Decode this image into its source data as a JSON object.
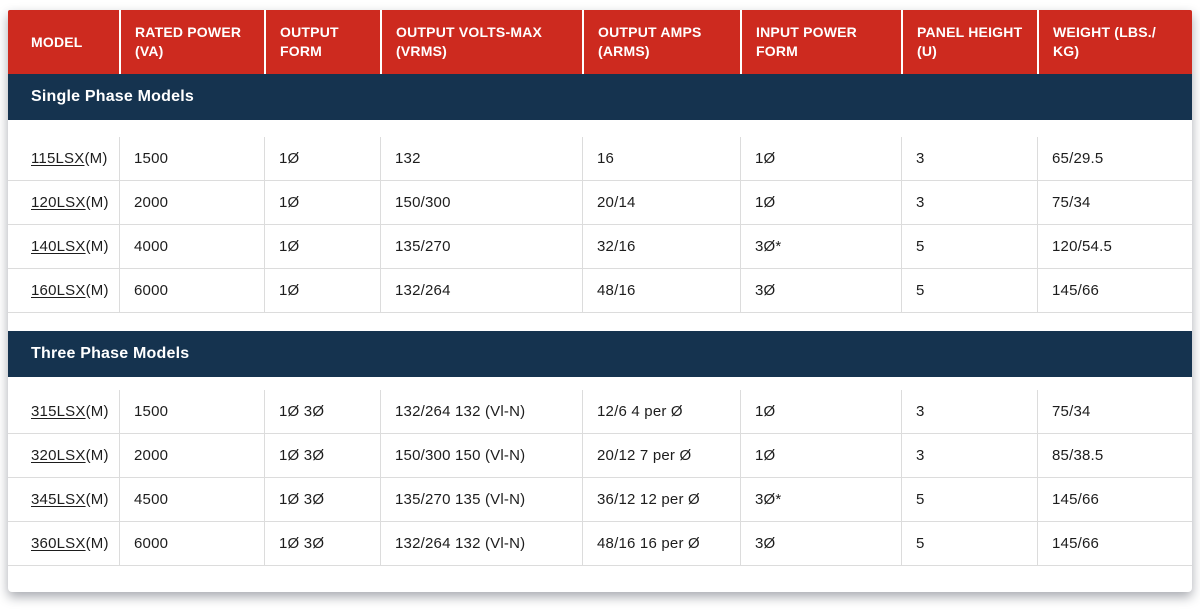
{
  "colors": {
    "header_red": "#cd2a1f",
    "section_navy": "#15334f",
    "body_text": "#1d1d1d",
    "row_border_gray": "#dcdcdc"
  },
  "table": {
    "columns": [
      {
        "lines": [
          "MODEL",
          ""
        ]
      },
      {
        "lines": [
          "RATED POWER",
          "(VA)"
        ]
      },
      {
        "lines": [
          "OUTPUT",
          "FORM"
        ]
      },
      {
        "lines": [
          "OUTPUT VOLTS-MAX",
          "(VRMS)"
        ]
      },
      {
        "lines": [
          "OUTPUT AMPS",
          "(ARMS)"
        ]
      },
      {
        "lines": [
          "INPUT POWER",
          "FORM"
        ]
      },
      {
        "lines": [
          "PANEL HEIGHT",
          "(U)"
        ]
      },
      {
        "lines": [
          "WEIGHT (LBS./",
          "KG)"
        ]
      }
    ],
    "sections": [
      {
        "title": "Single Phase Models",
        "rows": [
          {
            "model_link": "115LSX",
            "model_suffix": "(M)",
            "cells": [
              "1500",
              "1Ø",
              "132",
              "16",
              "1Ø",
              "3",
              "65/29.5"
            ]
          },
          {
            "model_link": "120LSX",
            "model_suffix": "(M)",
            "cells": [
              "2000",
              "1Ø",
              "150/300",
              "20/14",
              "1Ø",
              "3",
              "75/34"
            ]
          },
          {
            "model_link": "140LSX",
            "model_suffix": "(M)",
            "cells": [
              "4000",
              "1Ø",
              "135/270",
              "32/16",
              "3Ø*",
              "5",
              "120/54.5"
            ]
          },
          {
            "model_link": "160LSX",
            "model_suffix": "(M)",
            "cells": [
              "6000",
              "1Ø",
              "132/264",
              "48/16",
              "3Ø",
              "5",
              "145/66"
            ]
          }
        ]
      },
      {
        "title": "Three Phase Models",
        "rows": [
          {
            "model_link": "315LSX",
            "model_suffix": "(M)",
            "cells": [
              "1500",
              "1Ø 3Ø",
              "132/264 132 (Vl-N)",
              "12/6 4 per Ø",
              "1Ø",
              "3",
              "75/34"
            ]
          },
          {
            "model_link": "320LSX",
            "model_suffix": "(M)",
            "cells": [
              "2000",
              "1Ø 3Ø",
              "150/300 150 (Vl-N)",
              "20/12 7 per Ø",
              "1Ø",
              "3",
              "85/38.5"
            ]
          },
          {
            "model_link": "345LSX",
            "model_suffix": "(M)",
            "cells": [
              "4500",
              "1Ø 3Ø",
              "135/270 135 (Vl-N)",
              "36/12 12 per Ø",
              "3Ø*",
              "5",
              "145/66"
            ]
          },
          {
            "model_link": "360LSX",
            "model_suffix": "(M)",
            "cells": [
              "6000",
              "1Ø 3Ø",
              "132/264 132 (Vl-N)",
              "48/16 16 per Ø",
              "3Ø",
              "5",
              "145/66"
            ]
          }
        ]
      }
    ]
  }
}
